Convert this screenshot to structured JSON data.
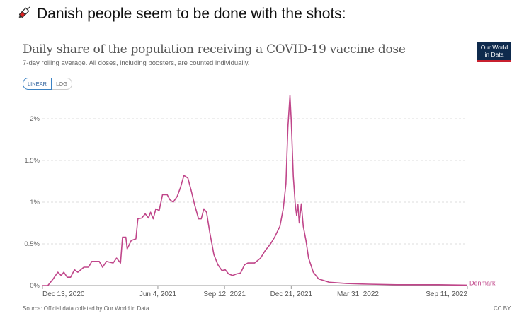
{
  "header": {
    "text": "Danish people seem to be done with the shots:",
    "icon": "syringe-icon"
  },
  "logo": {
    "line1": "Our World",
    "line2": "in Data"
  },
  "toggle": {
    "linear": "LINEAR",
    "log": "LOG"
  },
  "footer": {
    "source": "Source: Official data collated by Our World in Data",
    "license": "CC BY"
  },
  "chart_data": {
    "type": "line",
    "title": "Daily share of the population receiving a COVID-19 vaccine dose",
    "subtitle": "7-day rolling average. All doses, including boosters, are counted individually.",
    "xlabel": "",
    "ylabel": "",
    "x_unit": "days since Dec 13, 2020",
    "xlim": [
      0,
      637
    ],
    "ylim": [
      0,
      2.3
    ],
    "grid": true,
    "color": "#c0468a",
    "yticks": [
      {
        "v": 0,
        "label": "0%"
      },
      {
        "v": 0.5,
        "label": "0.5%"
      },
      {
        "v": 1,
        "label": "1%"
      },
      {
        "v": 1.5,
        "label": "1.5%"
      },
      {
        "v": 2,
        "label": "2%"
      }
    ],
    "xticks": [
      {
        "v": 0,
        "label": "Dec 13, 2020"
      },
      {
        "v": 173,
        "label": "Jun 4, 2021"
      },
      {
        "v": 273,
        "label": "Sep 12, 2021"
      },
      {
        "v": 373,
        "label": "Dec 21, 2021"
      },
      {
        "v": 473,
        "label": "Mar 31, 2022"
      },
      {
        "v": 637,
        "label": "Sep 11, 2022"
      }
    ],
    "series": [
      {
        "name": "Denmark",
        "x": [
          0,
          8,
          16,
          23,
          28,
          32,
          37,
          42,
          48,
          53,
          62,
          69,
          74,
          85,
          90,
          96,
          106,
          111,
          117,
          120,
          125,
          127,
          133,
          140,
          143,
          149,
          154,
          159,
          162,
          166,
          170,
          175,
          180,
          187,
          191,
          196,
          202,
          207,
          212,
          218,
          223,
          228,
          234,
          238,
          242,
          246,
          251,
          257,
          263,
          269,
          274,
          279,
          285,
          291,
          297,
          303,
          308,
          318,
          327,
          334,
          342,
          348,
          356,
          361,
          365,
          368,
          371,
          373,
          376,
          379,
          381,
          383,
          385,
          388,
          391,
          395,
          399,
          406,
          414,
          430,
          456,
          488,
          531,
          594,
          637
        ],
        "y": [
          0,
          0,
          0.08,
          0.16,
          0.12,
          0.16,
          0.1,
          0.1,
          0.19,
          0.16,
          0.22,
          0.22,
          0.29,
          0.29,
          0.22,
          0.29,
          0.27,
          0.33,
          0.27,
          0.58,
          0.58,
          0.44,
          0.54,
          0.56,
          0.8,
          0.81,
          0.86,
          0.81,
          0.88,
          0.8,
          0.92,
          0.9,
          1.09,
          1.09,
          1.03,
          1.0,
          1.07,
          1.18,
          1.32,
          1.29,
          1.14,
          0.97,
          0.8,
          0.8,
          0.92,
          0.88,
          0.63,
          0.37,
          0.25,
          0.18,
          0.19,
          0.14,
          0.12,
          0.14,
          0.15,
          0.25,
          0.27,
          0.27,
          0.33,
          0.42,
          0.5,
          0.58,
          0.71,
          0.92,
          1.22,
          1.9,
          2.28,
          1.98,
          1.31,
          0.97,
          0.84,
          0.97,
          0.75,
          0.98,
          0.71,
          0.54,
          0.33,
          0.16,
          0.08,
          0.04,
          0.025,
          0.017,
          0.01,
          0.01,
          0.005
        ]
      }
    ]
  }
}
